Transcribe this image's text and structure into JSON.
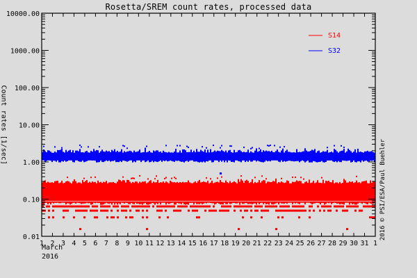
{
  "chart_data": {
    "type": "scatter",
    "title": "Rosetta/SREM count rates, processed data",
    "xlabel": "March 2016",
    "x_month": "March",
    "x_year": "2016",
    "ylabel": "Count rates [1/sec]",
    "yscale": "log",
    "ylim": [
      0.01,
      10000
    ],
    "xlim": [
      1,
      32
    ],
    "x_tick_labels": [
      "1",
      "2",
      "3",
      "4",
      "5",
      "6",
      "7",
      "8",
      "9",
      "10",
      "11",
      "12",
      "13",
      "14",
      "15",
      "16",
      "17",
      "18",
      "19",
      "20",
      "21",
      "22",
      "23",
      "24",
      "25",
      "26",
      "27",
      "28",
      "29",
      "30",
      "31",
      "1"
    ],
    "y_tick_labels": [
      "10000.00",
      "1000.00",
      "100.00",
      "10.00",
      "1.00",
      "0.10",
      "0.01"
    ],
    "y_tick_values": [
      10000,
      1000,
      100,
      10,
      1,
      0.1,
      0.01
    ],
    "grid": false,
    "legend_position": "upper right",
    "series": [
      {
        "name": "S14",
        "color": "#ff0000",
        "typical_range": [
          0.08,
          0.3
        ],
        "peak_outliers_max": 0.4,
        "discrete_low_levels": [
          0.065,
          0.05,
          0.033,
          0.016
        ],
        "description": "dense band ~0.08-0.3 counts/sec across the month with discrete low-count levels below"
      },
      {
        "name": "S32",
        "color": "#0000ff",
        "typical_range": [
          1.1,
          2.0
        ],
        "peak_outliers_max": 2.2,
        "outliers": [
          {
            "x": 17.6,
            "y": 0.5
          }
        ],
        "description": "dense band ~1.1-2.0 counts/sec across the month"
      }
    ],
    "credit": "2016 © PSI/ESA/Paul Buehler"
  },
  "legend": [
    {
      "label": "S14",
      "color": "#ff0000"
    },
    {
      "label": "S32",
      "color": "#0000ff"
    }
  ],
  "colors": {
    "background": "#dcdcdc",
    "axis": "#000000"
  }
}
